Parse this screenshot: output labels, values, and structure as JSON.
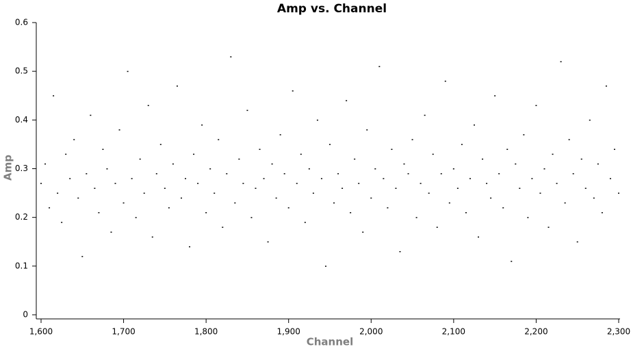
{
  "chart_data": {
    "type": "scatter",
    "title": "Amp vs. Channel",
    "x_label": "Channel",
    "y_label": "Amp",
    "color": "#000000",
    "xlim": [
      1600,
      2300
    ],
    "xticks": [
      {
        "value": 1600,
        "label": "1,600"
      },
      {
        "value": 1700,
        "label": "1,700"
      },
      {
        "value": 1800,
        "label": "1,800"
      },
      {
        "value": 1900,
        "label": "1,900"
      },
      {
        "value": 2000,
        "label": "2,000"
      },
      {
        "value": 2100,
        "label": "2,100"
      },
      {
        "value": 2200,
        "label": "2,200"
      },
      {
        "value": 2300,
        "label": "2,300"
      }
    ],
    "ylim": [
      0,
      0.6
    ],
    "yticks": [
      0,
      0.1,
      0.2,
      0.3,
      0.4,
      0.5,
      0.6
    ],
    "x": [
      1600,
      1605,
      1610,
      1615,
      1620,
      1625,
      1630,
      1635,
      1640,
      1645,
      1650,
      1655,
      1660,
      1665,
      1670,
      1675,
      1680,
      1685,
      1690,
      1695,
      1700,
      1705,
      1710,
      1715,
      1720,
      1725,
      1730,
      1735,
      1740,
      1745,
      1750,
      1755,
      1760,
      1765,
      1770,
      1775,
      1780,
      1785,
      1790,
      1795,
      1800,
      1805,
      1810,
      1815,
      1820,
      1825,
      1830,
      1835,
      1840,
      1845,
      1850,
      1855,
      1860,
      1865,
      1870,
      1875,
      1880,
      1885,
      1890,
      1895,
      1900,
      1905,
      1910,
      1915,
      1920,
      1925,
      1930,
      1935,
      1940,
      1945,
      1950,
      1955,
      1960,
      1965,
      1970,
      1975,
      1980,
      1985,
      1990,
      1995,
      2000,
      2005,
      2010,
      2015,
      2020,
      2025,
      2030,
      2035,
      2040,
      2045,
      2050,
      2055,
      2060,
      2065,
      2070,
      2075,
      2080,
      2085,
      2090,
      2095,
      2100,
      2105,
      2110,
      2115,
      2120,
      2125,
      2130,
      2135,
      2140,
      2145,
      2150,
      2155,
      2160,
      2165,
      2170,
      2175,
      2180,
      2185,
      2190,
      2195,
      2200,
      2205,
      2210,
      2215,
      2220,
      2225,
      2230,
      2235,
      2240,
      2245,
      2250,
      2255,
      2260,
      2265,
      2270,
      2275,
      2280,
      2285,
      2290,
      2295,
      2300
    ],
    "values": [
      0.27,
      0.31,
      0.22,
      0.45,
      0.25,
      0.19,
      0.33,
      0.28,
      0.36,
      0.24,
      0.12,
      0.29,
      0.41,
      0.26,
      0.21,
      0.34,
      0.3,
      0.17,
      0.27,
      0.38,
      0.23,
      0.5,
      0.28,
      0.2,
      0.32,
      0.25,
      0.43,
      0.16,
      0.29,
      0.35,
      0.26,
      0.22,
      0.31,
      0.47,
      0.24,
      0.28,
      0.14,
      0.33,
      0.27,
      0.39,
      0.21,
      0.3,
      0.25,
      0.36,
      0.18,
      0.29,
      0.53,
      0.23,
      0.32,
      0.27,
      0.42,
      0.2,
      0.26,
      0.34,
      0.28,
      0.15,
      0.31,
      0.24,
      0.37,
      0.29,
      0.22,
      0.46,
      0.27,
      0.33,
      0.19,
      0.3,
      0.25,
      0.4,
      0.28,
      0.1,
      0.35,
      0.23,
      0.29,
      0.26,
      0.44,
      0.21,
      0.32,
      0.27,
      0.17,
      0.38,
      0.24,
      0.3,
      0.51,
      0.28,
      0.22,
      0.34,
      0.26,
      0.13,
      0.31,
      0.29,
      0.36,
      0.2,
      0.27,
      0.41,
      0.25,
      0.33,
      0.18,
      0.29,
      0.48,
      0.23,
      0.3,
      0.26,
      0.35,
      0.21,
      0.28,
      0.39,
      0.16,
      0.32,
      0.27,
      0.24,
      0.45,
      0.29,
      0.22,
      0.34,
      0.11,
      0.31,
      0.26,
      0.37,
      0.2,
      0.28,
      0.43,
      0.25,
      0.3,
      0.18,
      0.33,
      0.27,
      0.52,
      0.23,
      0.36,
      0.29,
      0.15,
      0.32,
      0.26,
      0.4,
      0.24,
      0.31,
      0.21,
      0.47,
      0.28,
      0.34,
      0.25
    ]
  }
}
